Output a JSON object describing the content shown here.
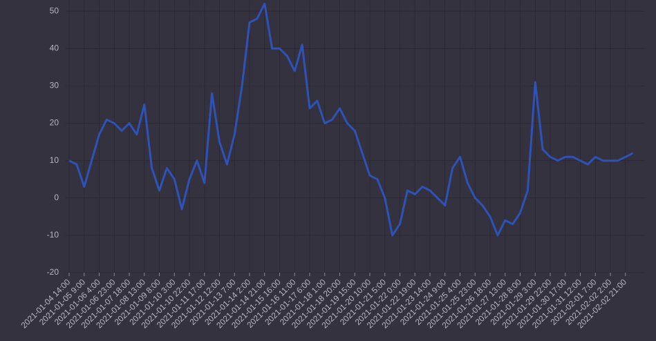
{
  "chart_data": {
    "type": "line",
    "categories": [
      "2021-01-04 14:00",
      null,
      "2021-01-05 9:00",
      null,
      "2021-01-06 4:00",
      null,
      "2021-01-06 23:00",
      null,
      "2021-01-07 18:00",
      null,
      "2021-01-08 13:00",
      null,
      "2021-01-09 8:00",
      null,
      "2021-01-10 3:00",
      null,
      "2021-01-10 22:00",
      null,
      "2021-01-11 17:00",
      null,
      "2021-01-12 12:00",
      null,
      "2021-01-13 7:00",
      null,
      "2021-01-14 2:00",
      null,
      "2021-01-14 21:00",
      null,
      "2021-01-15 16:00",
      null,
      "2021-01-16 11:00",
      null,
      "2021-01-17 6:00",
      null,
      "2021-01-18 1:00",
      null,
      "2021-01-18 20:00",
      null,
      "2021-01-19 15:00",
      null,
      "2021-01-20 10:00",
      null,
      "2021-01-21 5:00",
      null,
      "2021-01-22 0:00",
      null,
      "2021-01-22 19:00",
      null,
      "2021-01-23 14:00",
      null,
      "2021-01-24 9:00",
      null,
      "2021-01-25 4:00",
      null,
      "2021-01-25 23:00",
      null,
      "2021-01-26 18:00",
      null,
      "2021-01-27 13:00",
      null,
      "2021-01-28 8:00",
      null,
      "2021-01-29 3:00",
      null,
      "2021-01-29 22:00",
      null,
      "2021-01-30 17:00",
      null,
      "2021-01-31 12:00",
      null,
      "2021-02-01 7:00",
      null,
      "2021-02-02 2:00",
      null,
      "2021-02-02 21:00",
      null
    ],
    "values": [
      10,
      9,
      3,
      10,
      17,
      21,
      20,
      18,
      20,
      17,
      25,
      8,
      2,
      8,
      5,
      -3,
      5,
      10,
      4,
      28,
      15,
      9,
      17,
      30,
      47,
      48,
      52,
      40,
      40,
      38,
      34,
      41,
      24,
      26,
      20,
      21,
      24,
      20,
      18,
      12,
      6,
      5,
      0,
      -10,
      -7,
      2,
      1,
      3,
      2,
      0,
      -2,
      8,
      11,
      4,
      0,
      -2,
      -5,
      -10,
      -6,
      -7,
      -4,
      2,
      31,
      13,
      11,
      10,
      11,
      11,
      10,
      9,
      11,
      10,
      10,
      10,
      11,
      12
    ],
    "color": "#2d52b8",
    "ylim": [
      -20,
      53
    ],
    "yticks": [
      -20,
      -10,
      0,
      10,
      20,
      30,
      40,
      50
    ],
    "grid": true
  }
}
